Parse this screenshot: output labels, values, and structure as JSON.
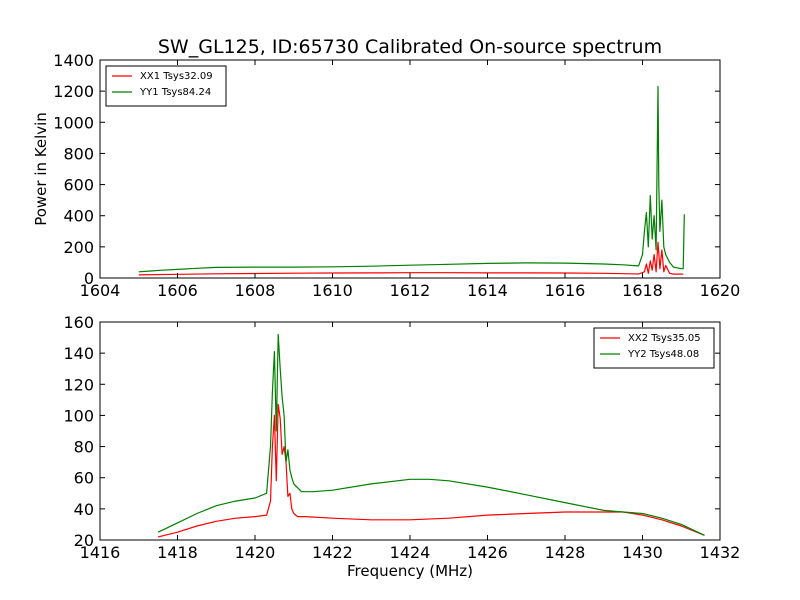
{
  "chart_data": [
    {
      "type": "line",
      "title": "SW_GL125, ID:65730 Calibrated On-source spectrum",
      "xlabel": "",
      "ylabel": "Power in Kelvin",
      "xlim": [
        1604,
        1620
      ],
      "ylim": [
        0,
        1400
      ],
      "xticks": [
        1604,
        1606,
        1608,
        1610,
        1612,
        1614,
        1616,
        1618,
        1620
      ],
      "yticks": [
        0,
        200,
        400,
        600,
        800,
        1000,
        1200,
        1400
      ],
      "legend": "top-left",
      "series": [
        {
          "name": "XX1 Tsys32.09",
          "color": "#ff0000",
          "x": [
            1605.0,
            1606.0,
            1607.0,
            1608.0,
            1609.0,
            1610.0,
            1611.0,
            1612.0,
            1613.0,
            1614.0,
            1615.0,
            1616.0,
            1617.0,
            1617.9,
            1618.05,
            1618.1,
            1618.15,
            1618.2,
            1618.25,
            1618.3,
            1618.35,
            1618.4,
            1618.45,
            1618.5,
            1618.55,
            1618.6,
            1618.7,
            1618.8,
            1619.05
          ],
          "y": [
            20,
            24,
            27,
            29,
            31,
            32,
            33,
            34,
            34,
            33,
            33,
            32,
            30,
            26,
            40,
            90,
            30,
            110,
            50,
            150,
            40,
            230,
            60,
            180,
            40,
            80,
            30,
            25,
            25
          ]
        },
        {
          "name": "YY1 Tsys84.24",
          "color": "#008000",
          "x": [
            1605.0,
            1605.3,
            1605.6,
            1606.0,
            1606.5,
            1607.0,
            1608.0,
            1609.0,
            1610.0,
            1611.0,
            1612.0,
            1613.0,
            1614.0,
            1615.0,
            1616.0,
            1617.0,
            1617.5,
            1617.9,
            1618.0,
            1618.05,
            1618.1,
            1618.15,
            1618.2,
            1618.25,
            1618.3,
            1618.35,
            1618.4,
            1618.42,
            1618.45,
            1618.5,
            1618.55,
            1618.6,
            1618.7,
            1618.8,
            1619.0,
            1619.05,
            1619.08
          ],
          "y": [
            40,
            45,
            50,
            55,
            62,
            68,
            70,
            70,
            72,
            76,
            82,
            88,
            94,
            97,
            96,
            90,
            85,
            78,
            150,
            300,
            420,
            200,
            530,
            250,
            400,
            180,
            1230,
            600,
            300,
            500,
            200,
            150,
            100,
            70,
            60,
            60,
            410
          ]
        }
      ]
    },
    {
      "type": "line",
      "title": "",
      "xlabel": "Frequency (MHz)",
      "ylabel": "",
      "xlim": [
        1416,
        1432
      ],
      "ylim": [
        20,
        160
      ],
      "xticks": [
        1416,
        1418,
        1420,
        1422,
        1424,
        1426,
        1428,
        1430,
        1432
      ],
      "yticks": [
        20,
        40,
        60,
        80,
        100,
        120,
        140,
        160
      ],
      "legend": "top-right",
      "series": [
        {
          "name": "XX2 Tsys35.05",
          "color": "#ff0000",
          "x": [
            1417.5,
            1418.0,
            1418.5,
            1419.0,
            1419.5,
            1420.0,
            1420.3,
            1420.4,
            1420.45,
            1420.5,
            1420.55,
            1420.6,
            1420.65,
            1420.7,
            1420.75,
            1420.8,
            1420.85,
            1420.9,
            1420.95,
            1421.0,
            1421.1,
            1421.3,
            1422.0,
            1423.0,
            1424.0,
            1425.0,
            1426.0,
            1427.0,
            1428.0,
            1429.0,
            1429.5,
            1430.0,
            1430.5,
            1431.0,
            1431.6
          ],
          "y": [
            22,
            25,
            29,
            32,
            34,
            35,
            36,
            45,
            80,
            100,
            58,
            107,
            98,
            75,
            80,
            70,
            48,
            50,
            40,
            37,
            35,
            35,
            34,
            33,
            33,
            34,
            36,
            37,
            38,
            38,
            38,
            36,
            33,
            29,
            23
          ]
        },
        {
          "name": "YY2 Tsys48.08",
          "color": "#008000",
          "x": [
            1417.5,
            1418.0,
            1418.5,
            1419.0,
            1419.5,
            1420.0,
            1420.3,
            1420.4,
            1420.45,
            1420.5,
            1420.55,
            1420.6,
            1420.65,
            1420.7,
            1420.75,
            1420.8,
            1420.85,
            1420.9,
            1420.95,
            1421.0,
            1421.2,
            1421.5,
            1422.0,
            1423.0,
            1424.0,
            1424.5,
            1425.0,
            1426.0,
            1427.0,
            1428.0,
            1429.0,
            1429.5,
            1430.0,
            1430.5,
            1431.0,
            1431.6
          ],
          "y": [
            25,
            31,
            37,
            42,
            45,
            47,
            50,
            80,
            115,
            141,
            90,
            152,
            130,
            112,
            100,
            70,
            78,
            65,
            60,
            56,
            51,
            51,
            52,
            56,
            59,
            59,
            58,
            54,
            49,
            44,
            39,
            38,
            37,
            34,
            30,
            23
          ]
        }
      ]
    }
  ]
}
